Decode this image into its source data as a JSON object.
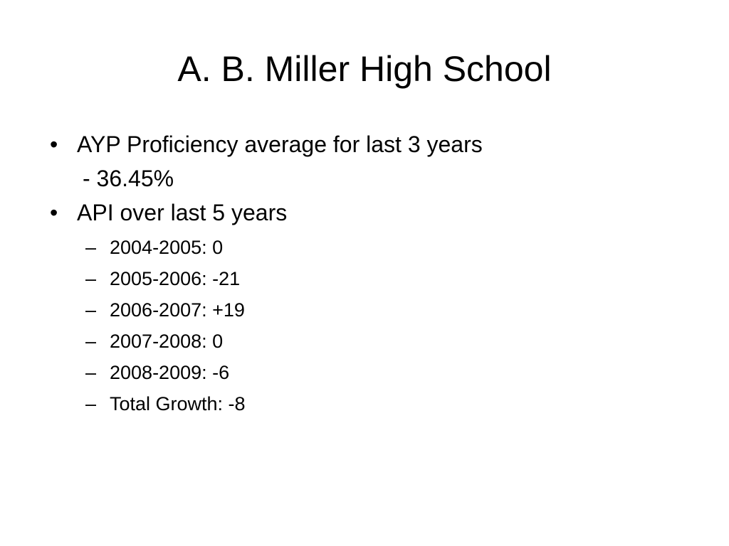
{
  "slide": {
    "title": "A. B. Miller High School",
    "bullets": [
      {
        "marker": "•",
        "text": "AYP Proficiency average for last 3 years",
        "continuation": "- 36.45%"
      },
      {
        "marker": "•",
        "text": "API over last 5 years",
        "sub_items": [
          {
            "marker": "–",
            "text": "2004-2005: 0"
          },
          {
            "marker": "–",
            "text": "2005-2006: -21"
          },
          {
            "marker": "–",
            "text": "2006-2007: +19"
          },
          {
            "marker": "–",
            "text": "2007-2008: 0"
          },
          {
            "marker": "–",
            "text": "2008-2009: -6"
          },
          {
            "marker": "–",
            "text": "Total Growth: -8"
          }
        ]
      }
    ]
  }
}
